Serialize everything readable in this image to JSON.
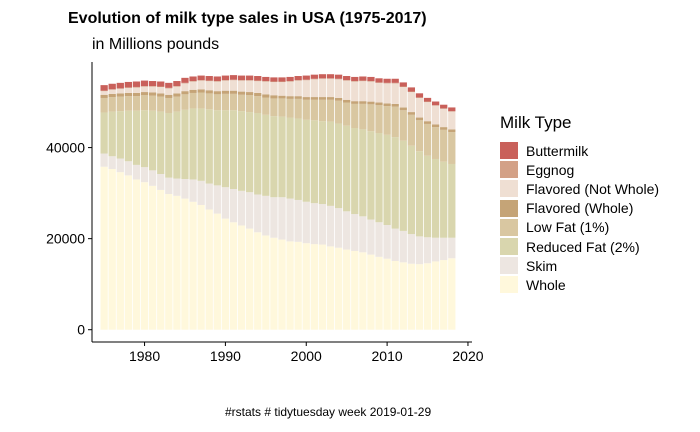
{
  "chart_data": {
    "type": "bar",
    "stacked": true,
    "title": "Evolution of milk type sales in USA (1975-2017)",
    "subtitle": "in Millions pounds",
    "caption": "#rstats # tidytuesday week 2019-01-29",
    "xlabel": "",
    "ylabel": "",
    "xlim": [
      1973.5,
      2020.5
    ],
    "ylim": [
      -2700,
      58800
    ],
    "x_ticks": [
      1980,
      1990,
      2000,
      2010,
      2020
    ],
    "y_ticks": [
      0,
      20000,
      40000
    ],
    "grid": false,
    "legend": {
      "title": "Milk Type",
      "position": "right"
    },
    "x": [
      1975,
      1976,
      1977,
      1978,
      1979,
      1980,
      1981,
      1982,
      1983,
      1984,
      1985,
      1986,
      1987,
      1988,
      1989,
      1990,
      1991,
      1992,
      1993,
      1994,
      1995,
      1996,
      1997,
      1998,
      1999,
      2000,
      2001,
      2002,
      2003,
      2004,
      2005,
      2006,
      2007,
      2008,
      2009,
      2010,
      2011,
      2012,
      2013,
      2014,
      2015,
      2016,
      2017,
      2018
    ],
    "series": [
      {
        "name": "Whole",
        "color": "#FFF8DC",
        "values": [
          35800,
          35300,
          34600,
          33900,
          33000,
          32400,
          31600,
          30700,
          29800,
          29400,
          28800,
          28100,
          27400,
          26400,
          25500,
          24400,
          23600,
          22900,
          22200,
          21400,
          20700,
          20200,
          19800,
          19400,
          19300,
          19000,
          18800,
          18700,
          18300,
          18000,
          17600,
          17300,
          17000,
          16500,
          16000,
          15600,
          15100,
          14800,
          14500,
          14400,
          14600,
          15000,
          15300,
          15700
        ]
      },
      {
        "name": "Skim",
        "color": "#EDE6E1",
        "values": [
          2900,
          2800,
          3000,
          3100,
          3200,
          3300,
          3400,
          3500,
          3600,
          3800,
          4300,
          4900,
          5300,
          5700,
          6200,
          6900,
          7300,
          7600,
          8000,
          8300,
          8700,
          8900,
          9300,
          9400,
          9200,
          9100,
          9000,
          8900,
          8900,
          8700,
          8400,
          8100,
          7900,
          7700,
          7600,
          7400,
          7100,
          6900,
          6500,
          6100,
          5700,
          5200,
          4900,
          4500
        ]
      },
      {
        "name": "Reduced Fat (2%)",
        "color": "#D9D6AE",
        "values": [
          9000,
          9800,
          10400,
          11100,
          11900,
          12500,
          13100,
          13700,
          14200,
          14700,
          15200,
          15600,
          15900,
          16300,
          16500,
          16900,
          17300,
          17500,
          17600,
          17900,
          17800,
          17800,
          17700,
          17800,
          17900,
          18000,
          18200,
          18200,
          18500,
          18600,
          18800,
          18900,
          19100,
          19400,
          19600,
          19800,
          20100,
          19800,
          19400,
          18700,
          17900,
          17300,
          16700,
          16200
        ]
      },
      {
        "name": "Low Fat (1%)",
        "color": "#D9C7A1",
        "values": [
          3200,
          3200,
          3200,
          3200,
          3200,
          3300,
          3300,
          3300,
          3300,
          3300,
          3400,
          3400,
          3500,
          3500,
          3500,
          3600,
          3600,
          3600,
          3700,
          3700,
          3800,
          3900,
          4000,
          4100,
          4300,
          4400,
          4500,
          4700,
          4800,
          5000,
          5100,
          5300,
          5600,
          5900,
          6100,
          6300,
          6700,
          6700,
          6800,
          6800,
          7000,
          7000,
          7000,
          7000
        ]
      },
      {
        "name": "Flavored (Whole)",
        "color": "#C5A477",
        "values": [
          700,
          700,
          700,
          700,
          700,
          700,
          700,
          700,
          700,
          700,
          700,
          700,
          700,
          700,
          700,
          700,
          700,
          700,
          700,
          700,
          700,
          700,
          600,
          600,
          600,
          600,
          600,
          600,
          600,
          600,
          600,
          600,
          600,
          600,
          600,
          600,
          600,
          600,
          600,
          600,
          600,
          600,
          600,
          600
        ]
      },
      {
        "name": "Flavored  (Not Whole)",
        "color": "#EFDFD3",
        "values": [
          800,
          900,
          1000,
          1100,
          1200,
          1200,
          1300,
          1400,
          1400,
          1500,
          1700,
          1800,
          1900,
          2000,
          2100,
          2200,
          2300,
          2400,
          2500,
          2600,
          2800,
          2900,
          3000,
          3200,
          3400,
          3700,
          3900,
          4000,
          4000,
          4100,
          4200,
          4300,
          4400,
          4400,
          4300,
          4400,
          4500,
          4500,
          4400,
          4300,
          4200,
          4100,
          4000,
          3900
        ]
      },
      {
        "name": "Eggnog",
        "color": "#D3A187",
        "values": [
          120,
          120,
          120,
          120,
          120,
          120,
          120,
          120,
          120,
          120,
          120,
          120,
          120,
          120,
          120,
          120,
          120,
          120,
          120,
          120,
          120,
          120,
          120,
          120,
          120,
          120,
          120,
          120,
          120,
          120,
          120,
          120,
          120,
          120,
          120,
          120,
          120,
          120,
          120,
          120,
          120,
          120,
          120,
          120
        ]
      },
      {
        "name": "Buttermilk",
        "color": "#C9605A",
        "values": [
          1200,
          1200,
          1200,
          1200,
          1200,
          1200,
          1100,
          1100,
          1100,
          1100,
          1100,
          1000,
          1000,
          1000,
          1000,
          1000,
          1000,
          1000,
          1000,
          1000,
          900,
          900,
          900,
          900,
          900,
          900,
          900,
          900,
          900,
          900,
          900,
          900,
          900,
          900,
          900,
          900,
          900,
          900,
          900,
          900,
          800,
          800,
          800,
          800
        ]
      }
    ]
  }
}
